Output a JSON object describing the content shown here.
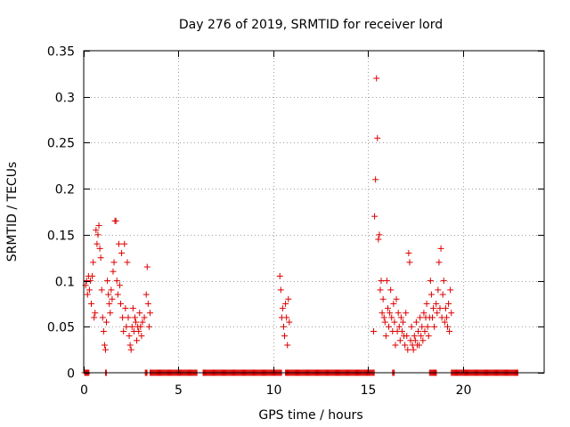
{
  "chart_data": {
    "type": "scatter",
    "title": "Day 276 of 2019, SRMTID for receiver lord",
    "xlabel": "GPS time / hours",
    "ylabel": "SRMTID / TECUs",
    "xlim": [
      0,
      24.3
    ],
    "ylim": [
      0,
      0.35
    ],
    "x_ticks": [
      0,
      5,
      10,
      15,
      20
    ],
    "x_tick_labels": [
      "0",
      "5",
      "10",
      "15",
      "20"
    ],
    "y_ticks": [
      0,
      0.05,
      0.1,
      0.15,
      0.2,
      0.25,
      0.3,
      0.35
    ],
    "y_tick_labels": [
      "0",
      "0.05",
      "0.1",
      "0.15",
      "0.2",
      "0.25",
      "0.3",
      "0.35"
    ],
    "grid": true,
    "marker": "+",
    "color": "#dd0000",
    "series": [
      {
        "name": "SRMTID",
        "points": [
          [
            0.1,
            0.095
          ],
          [
            0.15,
            0.1
          ],
          [
            0.2,
            0.085
          ],
          [
            0.25,
            0.105
          ],
          [
            0.3,
            0.09
          ],
          [
            0.35,
            0.1
          ],
          [
            0.4,
            0.075
          ],
          [
            0.45,
            0.105
          ],
          [
            0.5,
            0.12
          ],
          [
            0.55,
            0.06
          ],
          [
            0.6,
            0.065
          ],
          [
            0.65,
            0.155
          ],
          [
            0.7,
            0.14
          ],
          [
            0.75,
            0.15
          ],
          [
            0.8,
            0.16
          ],
          [
            0.85,
            0.135
          ],
          [
            0.9,
            0.125
          ],
          [
            0.95,
            0.09
          ],
          [
            1.0,
            0.06
          ],
          [
            1.05,
            0.045
          ],
          [
            1.1,
            0.03
          ],
          [
            1.15,
            0.025
          ],
          [
            1.2,
            0.055
          ],
          [
            1.25,
            0.1
          ],
          [
            1.3,
            0.085
          ],
          [
            1.35,
            0.075
          ],
          [
            1.4,
            0.065
          ],
          [
            1.45,
            0.09
          ],
          [
            1.5,
            0.08
          ],
          [
            1.55,
            0.11
          ],
          [
            1.6,
            0.12
          ],
          [
            1.65,
            0.165
          ],
          [
            1.7,
            0.165
          ],
          [
            1.75,
            0.1
          ],
          [
            1.8,
            0.085
          ],
          [
            1.85,
            0.14
          ],
          [
            1.9,
            0.095
          ],
          [
            1.95,
            0.075
          ],
          [
            2.0,
            0.13
          ],
          [
            2.05,
            0.06
          ],
          [
            2.1,
            0.045
          ],
          [
            2.15,
            0.14
          ],
          [
            2.2,
            0.07
          ],
          [
            2.25,
            0.05
          ],
          [
            2.3,
            0.12
          ],
          [
            2.35,
            0.06
          ],
          [
            2.4,
            0.04
          ],
          [
            2.45,
            0.03
          ],
          [
            2.5,
            0.025
          ],
          [
            2.55,
            0.05
          ],
          [
            2.6,
            0.07
          ],
          [
            2.65,
            0.045
          ],
          [
            2.7,
            0.06
          ],
          [
            2.75,
            0.055
          ],
          [
            2.8,
            0.035
          ],
          [
            2.85,
            0.05
          ],
          [
            2.9,
            0.045
          ],
          [
            2.95,
            0.065
          ],
          [
            3.0,
            0.05
          ],
          [
            3.05,
            0.04
          ],
          [
            3.1,
            0.055
          ],
          [
            3.2,
            0.06
          ],
          [
            3.3,
            0.085
          ],
          [
            3.35,
            0.115
          ],
          [
            3.4,
            0.075
          ],
          [
            3.45,
            0.05
          ],
          [
            3.5,
            0.065
          ],
          [
            10.35,
            0.105
          ],
          [
            10.4,
            0.09
          ],
          [
            10.45,
            0.06
          ],
          [
            10.5,
            0.07
          ],
          [
            10.55,
            0.05
          ],
          [
            10.6,
            0.04
          ],
          [
            10.65,
            0.075
          ],
          [
            10.7,
            0.06
          ],
          [
            10.75,
            0.03
          ],
          [
            10.8,
            0.08
          ],
          [
            10.85,
            0.055
          ],
          [
            15.3,
            0.045
          ],
          [
            15.35,
            0.17
          ],
          [
            15.4,
            0.21
          ],
          [
            15.45,
            0.32
          ],
          [
            15.5,
            0.255
          ],
          [
            15.55,
            0.145
          ],
          [
            15.6,
            0.15
          ],
          [
            15.65,
            0.09
          ],
          [
            15.7,
            0.1
          ],
          [
            15.75,
            0.065
          ],
          [
            15.8,
            0.08
          ],
          [
            15.85,
            0.06
          ],
          [
            15.9,
            0.055
          ],
          [
            15.95,
            0.04
          ],
          [
            16.0,
            0.1
          ],
          [
            16.05,
            0.07
          ],
          [
            16.1,
            0.05
          ],
          [
            16.15,
            0.065
          ],
          [
            16.2,
            0.09
          ],
          [
            16.25,
            0.06
          ],
          [
            16.3,
            0.045
          ],
          [
            16.35,
            0.075
          ],
          [
            16.4,
            0.055
          ],
          [
            16.45,
            0.03
          ],
          [
            16.5,
            0.08
          ],
          [
            16.55,
            0.045
          ],
          [
            16.6,
            0.065
          ],
          [
            16.65,
            0.05
          ],
          [
            16.7,
            0.035
          ],
          [
            16.75,
            0.06
          ],
          [
            16.8,
            0.045
          ],
          [
            16.85,
            0.055
          ],
          [
            16.9,
            0.04
          ],
          [
            16.95,
            0.03
          ],
          [
            17.0,
            0.065
          ],
          [
            17.05,
            0.04
          ],
          [
            17.1,
            0.025
          ],
          [
            17.15,
            0.13
          ],
          [
            17.2,
            0.12
          ],
          [
            17.25,
            0.035
          ],
          [
            17.3,
            0.05
          ],
          [
            17.35,
            0.03
          ],
          [
            17.4,
            0.025
          ],
          [
            17.45,
            0.04
          ],
          [
            17.5,
            0.035
          ],
          [
            17.55,
            0.055
          ],
          [
            17.6,
            0.03
          ],
          [
            17.65,
            0.045
          ],
          [
            17.7,
            0.03
          ],
          [
            17.75,
            0.06
          ],
          [
            17.8,
            0.04
          ],
          [
            17.85,
            0.05
          ],
          [
            17.9,
            0.035
          ],
          [
            17.95,
            0.065
          ],
          [
            18.0,
            0.045
          ],
          [
            18.05,
            0.06
          ],
          [
            18.1,
            0.075
          ],
          [
            18.15,
            0.05
          ],
          [
            18.2,
            0.04
          ],
          [
            18.25,
            0.06
          ],
          [
            18.3,
            0.1
          ],
          [
            18.35,
            0.085
          ],
          [
            18.4,
            0.06
          ],
          [
            18.45,
            0.07
          ],
          [
            18.5,
            0.05
          ],
          [
            18.6,
            0.075
          ],
          [
            18.65,
            0.065
          ],
          [
            18.7,
            0.09
          ],
          [
            18.75,
            0.12
          ],
          [
            18.8,
            0.07
          ],
          [
            18.85,
            0.135
          ],
          [
            18.9,
            0.06
          ],
          [
            18.95,
            0.085
          ],
          [
            19.0,
            0.1
          ],
          [
            19.05,
            0.055
          ],
          [
            19.1,
            0.07
          ],
          [
            19.15,
            0.06
          ],
          [
            19.2,
            0.05
          ],
          [
            19.25,
            0.075
          ],
          [
            19.3,
            0.045
          ],
          [
            19.35,
            0.09
          ],
          [
            19.4,
            0.065
          ]
        ],
        "zero_segments": [
          [
            0.05,
            0.3
          ],
          [
            1.15,
            1.2
          ],
          [
            3.25,
            3.35
          ],
          [
            3.5,
            6.0
          ],
          [
            6.3,
            10.45
          ],
          [
            10.65,
            15.35
          ],
          [
            16.3,
            16.4
          ],
          [
            18.25,
            18.65
          ],
          [
            19.4,
            22.95
          ]
        ]
      }
    ]
  }
}
